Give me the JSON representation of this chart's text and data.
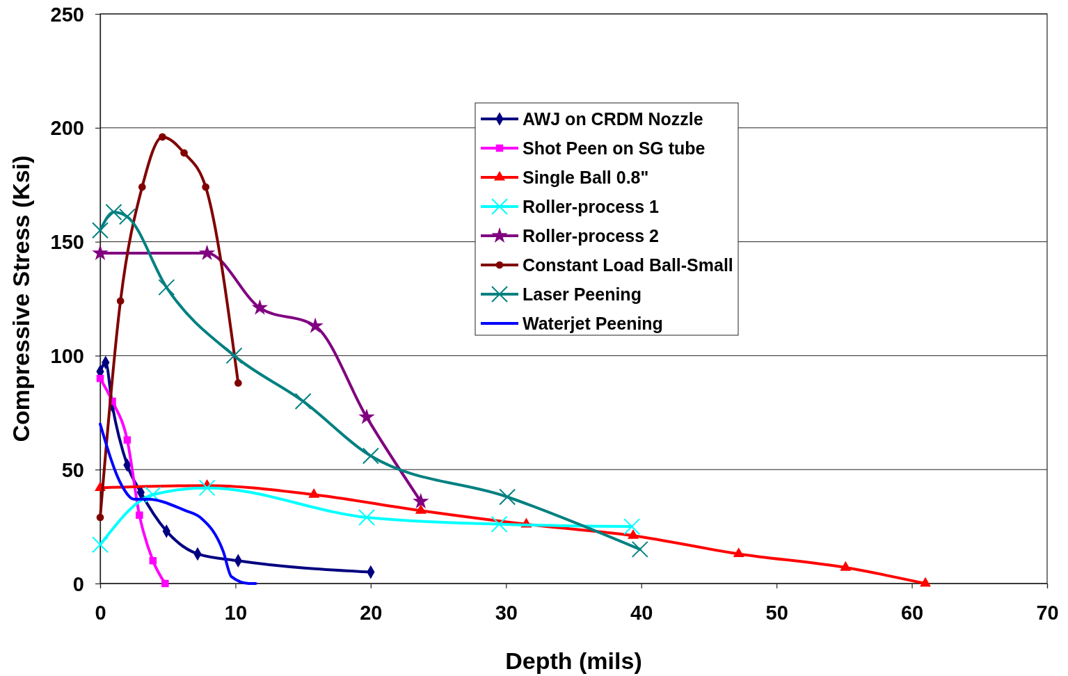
{
  "chart_data": {
    "type": "line",
    "xlabel": "Depth (mils)",
    "ylabel": "Compressive Stress (Ksi)",
    "xlim": [
      0,
      70
    ],
    "xticks": [
      0,
      10,
      20,
      30,
      40,
      50,
      60,
      70
    ],
    "ylim": [
      0,
      250
    ],
    "yticks": [
      0,
      50,
      100,
      150,
      200,
      250
    ],
    "grid": "y",
    "legend": "top right",
    "line_style": "solid",
    "series": [
      {
        "name": "AWJ on CRDM Nozzle",
        "color": "#000080",
        "marker": "diamond",
        "x": [
          0,
          0.4,
          0.9,
          2.0,
          3.0,
          4.9,
          7.2,
          10.2,
          20
        ],
        "values": [
          93,
          97,
          78,
          52,
          40,
          23,
          13,
          10,
          5
        ]
      },
      {
        "name": "Shot Peen on SG tube",
        "color": "#ff00ff",
        "marker": "square",
        "x": [
          0,
          0.9,
          2.0,
          2.9,
          3.9,
          4.8
        ],
        "values": [
          90,
          80,
          63,
          30,
          10,
          0
        ]
      },
      {
        "name": "Single Ball 0.8\"",
        "color": "#ff0000",
        "marker": "triangle",
        "x": [
          0,
          7.9,
          15.8,
          23.7,
          31.5,
          39.4,
          47.2,
          55.1,
          61
        ],
        "values": [
          42,
          43,
          39,
          32,
          26,
          21,
          13,
          7,
          0
        ]
      },
      {
        "name": "Roller-process 1",
        "color": "#00ffff",
        "marker": "cross",
        "x": [
          0,
          3.9,
          7.9,
          19.7,
          29.5,
          39.3
        ],
        "values": [
          17,
          39,
          42,
          29,
          26,
          25
        ]
      },
      {
        "name": "Roller-process 2",
        "color": "#800080",
        "marker": "star",
        "x": [
          0,
          7.9,
          11.8,
          15.9,
          19.7,
          23.7
        ],
        "values": [
          145,
          145,
          121,
          113,
          73,
          36
        ]
      },
      {
        "name": "Constant Load Ball-Small",
        "color": "#800000",
        "marker": "circle",
        "x": [
          0,
          1.5,
          3.1,
          4.6,
          6.2,
          7.8,
          10.2
        ],
        "values": [
          29,
          124,
          174,
          196,
          189,
          174,
          88
        ]
      },
      {
        "name": "Laser Peening",
        "color": "#008080",
        "marker": "cross",
        "x": [
          0,
          1,
          2,
          4.9,
          9.9,
          15,
          20,
          30.1,
          39.9
        ],
        "values": [
          155,
          163,
          161,
          130,
          100,
          80,
          56,
          38,
          15
        ]
      },
      {
        "name": "Waterjet Peening",
        "color": "#0000ff",
        "marker": "none",
        "x": [
          0,
          1.6,
          2.5,
          3.5,
          6.3,
          7.4,
          9.1,
          9.7,
          11,
          11.5
        ],
        "values": [
          70,
          43,
          37,
          37,
          32,
          29,
          14,
          3,
          0,
          0
        ]
      }
    ]
  }
}
